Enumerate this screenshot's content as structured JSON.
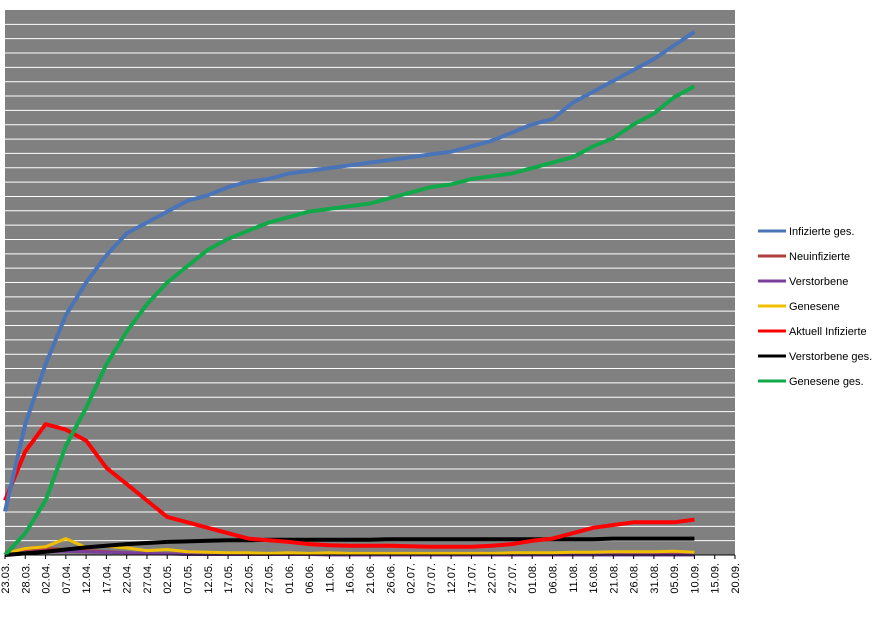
{
  "chart_data": {
    "type": "line",
    "x": [
      "23.03.",
      "28.03.",
      "02.04.",
      "07.04.",
      "12.04.",
      "17.04.",
      "22.04.",
      "27.04.",
      "02.05.",
      "07.05.",
      "12.05.",
      "17.05.",
      "22.05.",
      "27.05.",
      "01.06.",
      "06.06.",
      "11.06.",
      "16.06.",
      "21.06.",
      "26.06.",
      "02.07.",
      "07.07.",
      "12.07.",
      "17.07.",
      "22.07.",
      "27.07.",
      "01.08.",
      "06.08.",
      "11.08.",
      "16.08.",
      "21.08.",
      "26.08.",
      "31.08.",
      "05.09.",
      "10.09.",
      "15.09.",
      "20.09."
    ],
    "y_relative_range": [
      0,
      1
    ],
    "grid": "horizontal",
    "plot_background": "#808080",
    "legend_placement": "right",
    "series": [
      {
        "name": "Infizierte ges.",
        "color": "#4a74b8",
        "values": [
          0.08,
          0.24,
          0.35,
          0.44,
          0.5,
          0.55,
          0.59,
          0.61,
          0.63,
          0.65,
          0.66,
          0.675,
          0.685,
          0.69,
          0.7,
          0.705,
          0.71,
          0.715,
          0.72,
          0.725,
          0.73,
          0.735,
          0.74,
          0.75,
          0.76,
          0.775,
          0.79,
          0.8,
          0.83,
          0.85,
          0.87,
          0.89,
          0.91,
          0.935,
          0.96,
          null,
          null
        ]
      },
      {
        "name": "Neuinfizierte",
        "color": "#b03c3c",
        "values": [
          0.005,
          0.01,
          0.012,
          0.01,
          0.008,
          0.006,
          0.004,
          0.003,
          0.002,
          0.002,
          0.001,
          0.001,
          0.001,
          0.001,
          0.001,
          0.001,
          0.001,
          0.001,
          0.001,
          0.001,
          0.001,
          0.001,
          0.001,
          0.001,
          0.001,
          0.002,
          0.003,
          0.003,
          0.004,
          0.004,
          0.004,
          0.004,
          0.004,
          0.004,
          0.004,
          null,
          null
        ]
      },
      {
        "name": "Verstorbene",
        "color": "#7a3f9d",
        "values": [
          0.002,
          0.004,
          0.006,
          0.007,
          0.006,
          0.005,
          0.004,
          0.003,
          0.002,
          0.001,
          0.001,
          0.001,
          0.001,
          0.001,
          0.001,
          0.001,
          0.0,
          0.0,
          0.0,
          0.0,
          0.0,
          0.0,
          0.0,
          0.0,
          0.0,
          0.0,
          0.0,
          0.0,
          0.0,
          0.0,
          0.0,
          0.0,
          0.0,
          0.0,
          0.0,
          null,
          null
        ]
      },
      {
        "name": "Genesene",
        "color": "#f0c000",
        "values": [
          0.003,
          0.012,
          0.015,
          0.03,
          0.014,
          0.016,
          0.013,
          0.008,
          0.01,
          0.006,
          0.005,
          0.004,
          0.004,
          0.003,
          0.004,
          0.003,
          0.004,
          0.003,
          0.003,
          0.003,
          0.003,
          0.003,
          0.003,
          0.003,
          0.003,
          0.004,
          0.004,
          0.004,
          0.005,
          0.005,
          0.006,
          0.006,
          0.006,
          0.007,
          0.005,
          null,
          null
        ]
      },
      {
        "name": "Aktuell Infizierte",
        "color": "#ff0000",
        "values": [
          0.1,
          0.19,
          0.24,
          0.23,
          0.21,
          0.16,
          0.13,
          0.1,
          0.07,
          0.06,
          0.05,
          0.04,
          0.03,
          0.027,
          0.024,
          0.02,
          0.018,
          0.017,
          0.017,
          0.017,
          0.016,
          0.015,
          0.015,
          0.015,
          0.017,
          0.02,
          0.026,
          0.03,
          0.04,
          0.05,
          0.055,
          0.06,
          0.06,
          0.06,
          0.065,
          null,
          null
        ]
      },
      {
        "name": "Verstorbene ges.",
        "color": "#000000",
        "values": [
          0.0,
          0.003,
          0.006,
          0.01,
          0.014,
          0.017,
          0.02,
          0.022,
          0.024,
          0.025,
          0.026,
          0.027,
          0.027,
          0.028,
          0.028,
          0.028,
          0.028,
          0.028,
          0.028,
          0.029,
          0.029,
          0.029,
          0.029,
          0.029,
          0.029,
          0.029,
          0.029,
          0.029,
          0.029,
          0.029,
          0.03,
          0.03,
          0.03,
          0.03,
          0.03,
          null,
          null
        ]
      },
      {
        "name": "Genesene ges.",
        "color": "#11a84a",
        "values": [
          0.0,
          0.04,
          0.1,
          0.2,
          0.27,
          0.35,
          0.41,
          0.46,
          0.5,
          0.53,
          0.56,
          0.58,
          0.595,
          0.61,
          0.62,
          0.63,
          0.635,
          0.64,
          0.645,
          0.655,
          0.665,
          0.675,
          0.68,
          0.69,
          0.695,
          0.7,
          0.71,
          0.72,
          0.73,
          0.75,
          0.765,
          0.79,
          0.81,
          0.84,
          0.86,
          null,
          null
        ]
      }
    ]
  }
}
